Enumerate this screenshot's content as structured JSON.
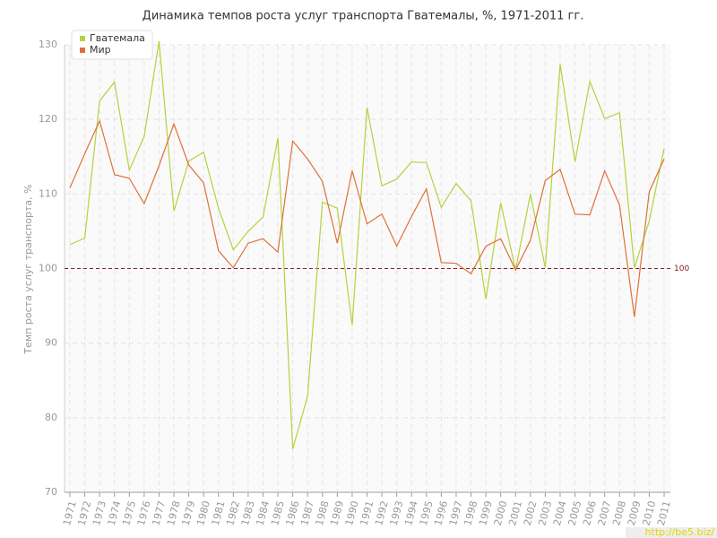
{
  "chart_data": {
    "type": "line",
    "title": "Динамика темпов роста услуг транспорта Гватемалы, %, 1971-2011 гг.",
    "y_label": "Темп роста услуг транспорта, %",
    "categories": [
      "1971",
      "1972",
      "1973",
      "1974",
      "1975",
      "1976",
      "1977",
      "1978",
      "1979",
      "1980",
      "1981",
      "1982",
      "1983",
      "1984",
      "1985",
      "1986",
      "1987",
      "1988",
      "1989",
      "1990",
      "1991",
      "1992",
      "1993",
      "1994",
      "1995",
      "1996",
      "1997",
      "1998",
      "1999",
      "2000",
      "2001",
      "2002",
      "2003",
      "2004",
      "2005",
      "2006",
      "2007",
      "2008",
      "2009",
      "2010",
      "2011"
    ],
    "series": [
      {
        "name": "Гватемала",
        "color": "#b5d23c",
        "values": [
          103.2,
          104.1,
          122.5,
          125.0,
          113.2,
          117.7,
          130.5,
          107.7,
          114.4,
          115.6,
          108.1,
          102.5,
          105.0,
          106.9,
          117.5,
          75.8,
          82.9,
          108.9,
          108.1,
          92.4,
          121.6,
          111.1,
          112.0,
          114.3,
          114.2,
          108.2,
          111.4,
          109.1,
          95.9,
          108.8,
          99.8,
          110.0,
          100.1,
          127.4,
          114.3,
          125.1,
          120.1,
          120.9,
          100.1,
          106.4,
          116.1
        ]
      },
      {
        "name": "Мир",
        "color": "#e0703a",
        "values": [
          110.8,
          115.4,
          119.8,
          112.6,
          112.1,
          108.7,
          113.8,
          119.4,
          113.9,
          111.5,
          102.4,
          100.1,
          103.4,
          104.0,
          102.2,
          117.1,
          114.7,
          111.7,
          103.4,
          113.1,
          106.0,
          107.3,
          103.0,
          107.0,
          110.7,
          100.8,
          100.7,
          99.3,
          103.0,
          104.0,
          99.8,
          103.8,
          111.8,
          113.3,
          107.3,
          107.2,
          113.1,
          108.5,
          93.5,
          110.3,
          114.7
        ]
      }
    ],
    "ylim": [
      70,
      130
    ],
    "yticks": [
      70,
      80,
      90,
      100,
      110,
      120,
      130
    ],
    "grid": true,
    "reference_line": 100,
    "reference_color": "#8b1a2b",
    "legend": "top-left",
    "watermark": "http://be5.biz/"
  }
}
